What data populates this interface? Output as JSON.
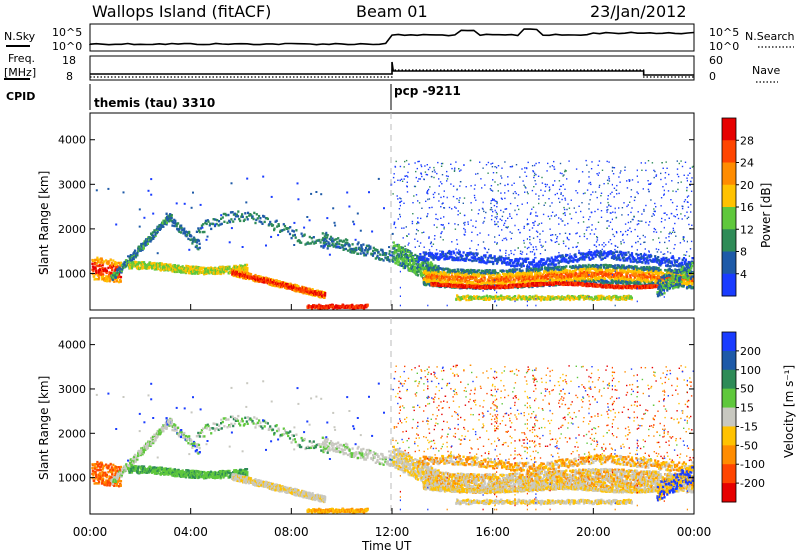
{
  "header": {
    "site": "Wallops Island (fitACF)",
    "beam": "Beam 01",
    "date": "23/Jan/2012"
  },
  "top_panels": {
    "nsky_label": "N.Sky",
    "nsky_ticks": [
      "10^5",
      "10^0"
    ],
    "nsearch_label": "N.Search",
    "nsearch_ticks": [
      "10^5",
      "10^0"
    ],
    "freq_label": "Freq.",
    "freq_unit": "[MHz]",
    "freq_ticks": [
      "18",
      "8"
    ],
    "nave_label": "Nave",
    "nave_ticks": [
      "60",
      "0"
    ],
    "cpid_label": "CPID",
    "cpid_modes": [
      {
        "name": "themis (tau) 3310",
        "start_hour": 0
      },
      {
        "name": "pcp -9211",
        "start_hour": 12
      }
    ]
  },
  "chart_data": [
    {
      "type": "heatmap",
      "ylabel": "Slant Range [km]",
      "colorbar_label": "Power [dB]",
      "colorbar_ticks": [
        4,
        8,
        12,
        16,
        20,
        24,
        28
      ],
      "colors": [
        "#1a3cff",
        "#1e5aa8",
        "#2e8b57",
        "#5fc83c",
        "#ffc200",
        "#ff8c00",
        "#ff4500",
        "#e60000"
      ],
      "ylim": [
        180,
        4600
      ],
      "yticks": [
        1000,
        2000,
        3000,
        4000
      ],
      "xlim_hours": [
        0,
        24
      ]
    },
    {
      "type": "heatmap",
      "ylabel": "Slant Range [km]",
      "colorbar_label": "Velocity [m s⁻¹]",
      "colorbar_ticks": [
        "200",
        "100",
        "50",
        "15",
        "-15",
        "-50",
        "-100",
        "-200"
      ],
      "colors": [
        "#1a3cff",
        "#1e5aa8",
        "#2e8b57",
        "#5fc83c",
        "#c8c8c0",
        "#ffc200",
        "#ff8c00",
        "#ff4500",
        "#e60000"
      ],
      "ylim": [
        180,
        4600
      ],
      "yticks": [
        1000,
        2000,
        3000,
        4000
      ],
      "xlim_hours": [
        0,
        24
      ]
    }
  ],
  "xaxis": {
    "ticks": [
      "00:00",
      "04:00",
      "08:00",
      "12:00",
      "16:00",
      "20:00",
      "00:00"
    ],
    "label": "Time UT"
  }
}
